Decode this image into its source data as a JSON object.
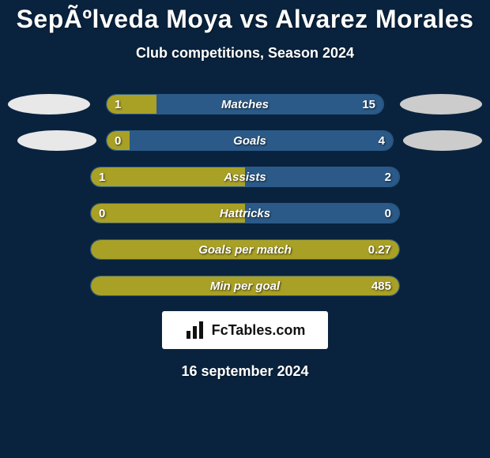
{
  "title": "SepÃºlveda Moya vs Alvarez Morales",
  "subtitle": "Club competitions, Season 2024",
  "date": "16 september 2024",
  "logo_text": "FcTables.com",
  "colors": {
    "background": "#09233e",
    "bar_left": "#a9a026",
    "bar_right": "#2b5a88",
    "bar_border": "#2b5a88",
    "avatar_left": "#e8e8e8",
    "avatar_right": "#cccccc",
    "text": "#ffffff",
    "logo_box_bg": "#ffffff"
  },
  "typography": {
    "title_fontsize": 32,
    "subtitle_fontsize": 18,
    "metric_fontsize": 15,
    "date_fontsize": 18,
    "logo_fontsize": 18
  },
  "rows": [
    {
      "metric": "Matches",
      "left": "1",
      "right": "15",
      "left_pct": 18,
      "show_avatars": true
    },
    {
      "metric": "Goals",
      "left": "0",
      "right": "4",
      "left_pct": 8,
      "show_avatars": true
    },
    {
      "metric": "Assists",
      "left": "1",
      "right": "2",
      "left_pct": 50,
      "show_avatars": false
    },
    {
      "metric": "Hattricks",
      "left": "0",
      "right": "0",
      "left_pct": 50,
      "show_avatars": false
    },
    {
      "metric": "Goals per match",
      "left": "",
      "right": "0.27",
      "left_pct": 100,
      "show_avatars": false
    },
    {
      "metric": "Min per goal",
      "left": "",
      "right": "485",
      "left_pct": 100,
      "show_avatars": false
    }
  ]
}
